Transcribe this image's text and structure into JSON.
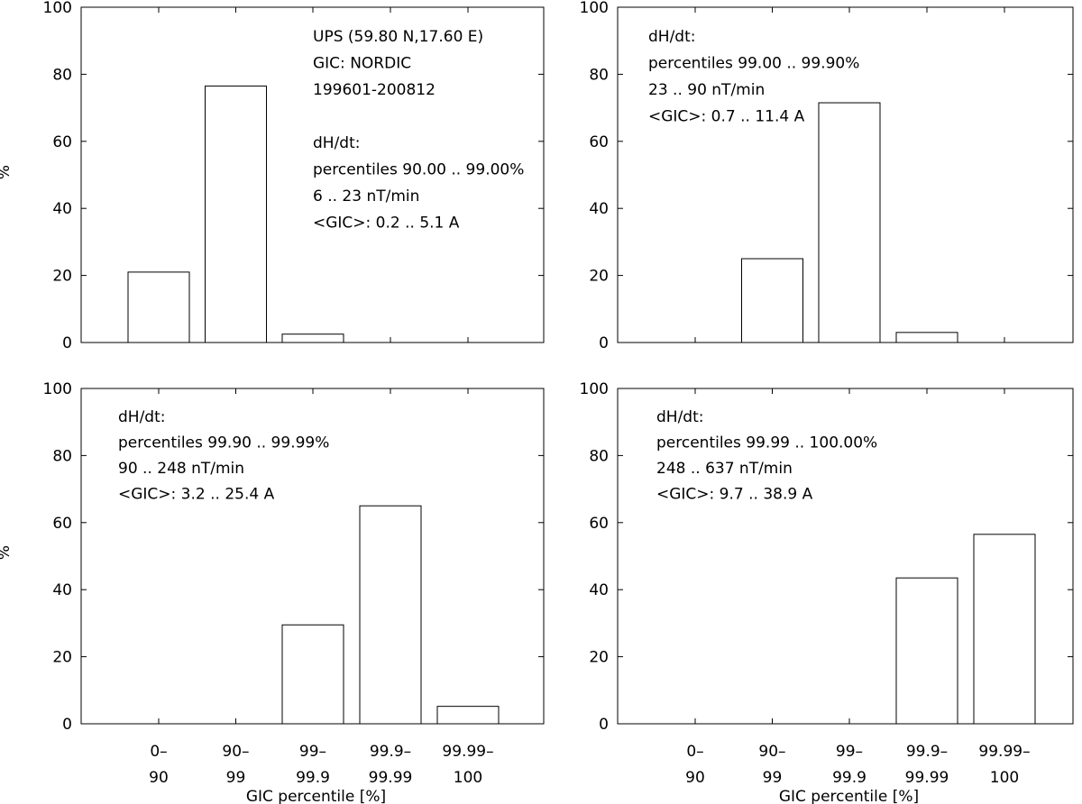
{
  "chart_data": [
    {
      "type": "bar",
      "panel": "top-left",
      "categories": [
        "0-90",
        "90-99",
        "99-99.9",
        "99.9-99.99",
        "99.99-100"
      ],
      "values": [
        21,
        76.5,
        2.5,
        0,
        0
      ],
      "ylabel": "%",
      "xlabel": "",
      "ylim": [
        0,
        100
      ],
      "yticks": [
        "0",
        "20",
        "40",
        "60",
        "80",
        "100"
      ],
      "annotations": [
        "UPS (59.80 N,17.60 E)",
        "GIC: NORDIC",
        "199601-200812",
        "",
        "dH/dt:",
        "percentiles 90.00 .. 99.00%",
        "6 .. 23 nT/min",
        "<GIC>: 0.2 .. 5.1 A"
      ]
    },
    {
      "type": "bar",
      "panel": "top-right",
      "categories": [
        "0-90",
        "90-99",
        "99-99.9",
        "99.9-99.99",
        "99.99-100"
      ],
      "values": [
        0,
        25,
        71.5,
        3,
        0
      ],
      "ylabel": "",
      "xlabel": "",
      "ylim": [
        0,
        100
      ],
      "yticks": [
        "0",
        "20",
        "40",
        "60",
        "80",
        "100"
      ],
      "annotations": [
        "dH/dt:",
        "percentiles 99.00 .. 99.90%",
        "23 .. 90 nT/min",
        "<GIC>: 0.7 .. 11.4 A"
      ]
    },
    {
      "type": "bar",
      "panel": "bottom-left",
      "categories": [
        "0-90",
        "90-99",
        "99-99.9",
        "99.9-99.99",
        "99.99-100"
      ],
      "xtick_lines": [
        [
          "0–",
          "90"
        ],
        [
          "90–",
          "99"
        ],
        [
          "99–",
          "99.9"
        ],
        [
          "99.9–",
          "99.99"
        ],
        [
          "99.99–",
          "100"
        ]
      ],
      "values": [
        0,
        0,
        29.5,
        65,
        5.2
      ],
      "ylabel": "%",
      "xlabel": "GIC percentile [%]",
      "ylim": [
        0,
        100
      ],
      "yticks": [
        "0",
        "20",
        "40",
        "60",
        "80",
        "100"
      ],
      "annotations": [
        "dH/dt:",
        "percentiles 99.90 .. 99.99%",
        "90 .. 248 nT/min",
        "<GIC>: 3.2 .. 25.4 A"
      ]
    },
    {
      "type": "bar",
      "panel": "bottom-right",
      "categories": [
        "0-90",
        "90-99",
        "99-99.9",
        "99.9-99.99",
        "99.99-100"
      ],
      "xtick_lines": [
        [
          "0–",
          "90"
        ],
        [
          "90–",
          "99"
        ],
        [
          "99–",
          "99.9"
        ],
        [
          "99.9–",
          "99.99"
        ],
        [
          "99.99–",
          "100"
        ]
      ],
      "values": [
        0,
        0,
        0,
        43.5,
        56.5
      ],
      "ylabel": "",
      "xlabel": "GIC percentile [%]",
      "ylim": [
        0,
        100
      ],
      "yticks": [
        "0",
        "20",
        "40",
        "60",
        "80",
        "100"
      ],
      "annotations": [
        "dH/dt:",
        "percentiles 99.99 .. 100.00%",
        "248 .. 637 nT/min",
        "<GIC>: 9.7 .. 38.9 A"
      ]
    }
  ]
}
